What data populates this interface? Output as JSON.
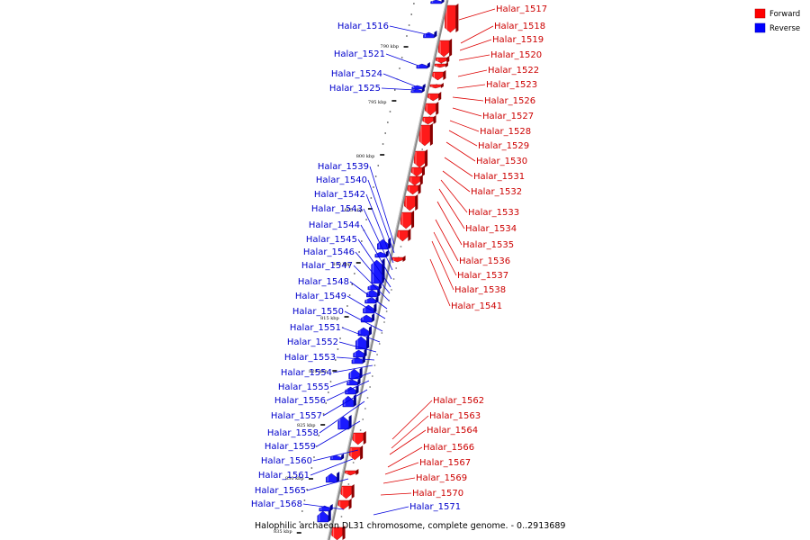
{
  "caption": "Halophilic archaeon DL31 chromosome, complete genome. - 0..2913689",
  "legend": {
    "forward": {
      "label": "Forward",
      "color": "#ff0000"
    },
    "reverse": {
      "label": "Reverse",
      "color": "#0000ff"
    }
  },
  "scale_labels": [
    "790 kbp",
    "795 kbp",
    "800 kbp",
    "805 kbp",
    "810 kbp",
    "815 kbp",
    "820 kbp",
    "825 kbp",
    "830 kbp",
    "835 kbp"
  ],
  "forward_genes": [
    "Halar_1517",
    "Halar_1518",
    "Halar_1519",
    "Halar_1520",
    "Halar_1522",
    "Halar_1523",
    "Halar_1526",
    "Halar_1527",
    "Halar_1528",
    "Halar_1529",
    "Halar_1530",
    "Halar_1531",
    "Halar_1532",
    "Halar_1533",
    "Halar_1534",
    "Halar_1535",
    "Halar_1536",
    "Halar_1537",
    "Halar_1538",
    "Halar_1541",
    "Halar_1562",
    "Halar_1563",
    "Halar_1564",
    "Halar_1566",
    "Halar_1567",
    "Halar_1569",
    "Halar_1570"
  ],
  "reverse_genes": [
    "Halar_1516",
    "Halar_1521",
    "Halar_1524",
    "Halar_1525",
    "Halar_1539",
    "Halar_1540",
    "Halar_1542",
    "Halar_1543",
    "Halar_1544",
    "Halar_1545",
    "Halar_1546",
    "Halar_1547",
    "Halar_1548",
    "Halar_1549",
    "Halar_1550",
    "Halar_1551",
    "Halar_1552",
    "Halar_1553",
    "Halar_1554",
    "Halar_1555",
    "Halar_1556",
    "Halar_1557",
    "Halar_1558",
    "Halar_1559",
    "Halar_1560",
    "Halar_1561",
    "Halar_1565",
    "Halar_1568",
    "Halar_1571"
  ]
}
